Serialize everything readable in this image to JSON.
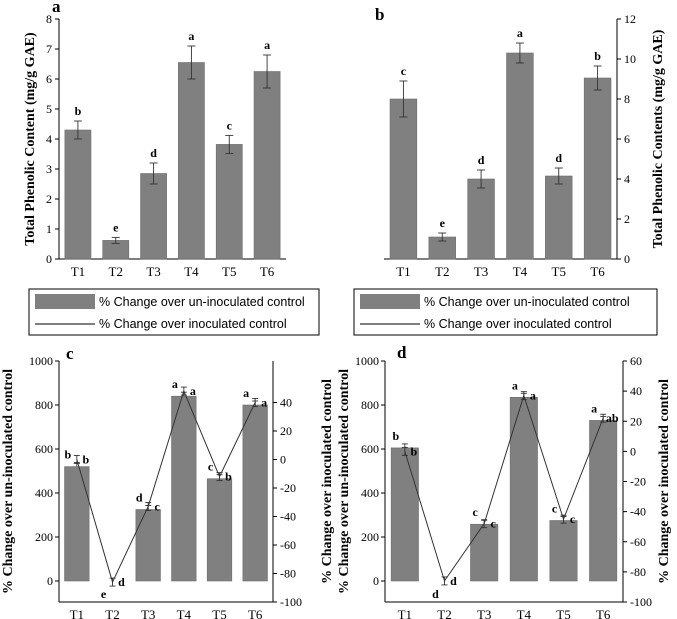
{
  "legend": {
    "bar_label": "% Change over un-inoculated control",
    "line_label": "% Change over inoculated control"
  },
  "chart_data": [
    {
      "panel": "a",
      "type": "bar",
      "categories": [
        "T1",
        "T2",
        "T3",
        "T4",
        "T5",
        "T6"
      ],
      "values": [
        4.3,
        0.62,
        2.85,
        6.55,
        3.82,
        6.25
      ],
      "errors": [
        0.3,
        0.1,
        0.35,
        0.55,
        0.3,
        0.55
      ],
      "letters": [
        "b",
        "e",
        "d",
        "a",
        "c",
        "a"
      ],
      "ylabel": "Total Phenolic Content (mg/g GAE)",
      "ylim": [
        0,
        8
      ],
      "yticks": [
        0,
        1,
        2,
        3,
        4,
        5,
        6,
        7,
        8
      ],
      "y_axis_side": "left"
    },
    {
      "panel": "b",
      "type": "bar",
      "categories": [
        "T1",
        "T2",
        "T3",
        "T4",
        "T5",
        "T6"
      ],
      "values": [
        8.0,
        1.1,
        4.0,
        10.3,
        4.15,
        9.05
      ],
      "errors": [
        0.9,
        0.2,
        0.45,
        0.5,
        0.4,
        0.6
      ],
      "letters": [
        "c",
        "e",
        "d",
        "a",
        "d",
        "b"
      ],
      "ylabel": "Total Phenolic Contents (mg/g GAE)",
      "ylim": [
        0,
        12
      ],
      "yticks": [
        0,
        2,
        4,
        6,
        8,
        10,
        12
      ],
      "y_axis_side": "right"
    },
    {
      "panel": "c",
      "type": "bar+line",
      "categories": [
        "T1",
        "T2",
        "T3",
        "T4",
        "T5",
        "T6"
      ],
      "bar_values": [
        520,
        0,
        325,
        840,
        465,
        800
      ],
      "bar_letters": [
        "b",
        "e",
        "d",
        "a",
        "c",
        "a"
      ],
      "line_values": [
        0,
        -86,
        -33,
        48,
        -12,
        40
      ],
      "line_letters": [
        "b",
        "d",
        "c",
        "a",
        "b",
        "a"
      ],
      "ylabel_left": "% Change over un-inoculated control",
      "ylabel_right": "% Change over inoculated control",
      "ylim_left": [
        0,
        1000
      ],
      "yticks_left": [
        0,
        200,
        400,
        600,
        800,
        1000
      ],
      "ylim_right": [
        -100,
        60
      ],
      "yticks_right": [
        -100,
        -80,
        -60,
        -40,
        -20,
        0,
        20,
        40
      ],
      "yticks_right_shown": [
        -100,
        -80,
        -60,
        -40,
        -20,
        0,
        20,
        40
      ]
    },
    {
      "panel": "d",
      "type": "bar+line",
      "categories": [
        "T1",
        "T2",
        "T3",
        "T4",
        "T5",
        "T6"
      ],
      "bar_values": [
        605,
        0,
        258,
        835,
        275,
        730
      ],
      "bar_letters": [
        "b",
        "d",
        "c",
        "a",
        "c",
        "a"
      ],
      "line_values": [
        0,
        -86,
        -48,
        37,
        -45,
        22
      ],
      "line_letters": [
        "b",
        "d",
        "c",
        "a",
        "c",
        "ab"
      ],
      "ylabel_left": "% Change over un-inoculated control",
      "ylabel_right": "% Change over inoculated control",
      "ylim_left": [
        0,
        1000
      ],
      "yticks_left": [
        0,
        200,
        400,
        600,
        800,
        1000
      ],
      "ylim_right": [
        -100,
        60
      ],
      "yticks_right": [
        -100,
        -80,
        -60,
        -40,
        -20,
        0,
        20,
        40,
        60
      ]
    }
  ]
}
